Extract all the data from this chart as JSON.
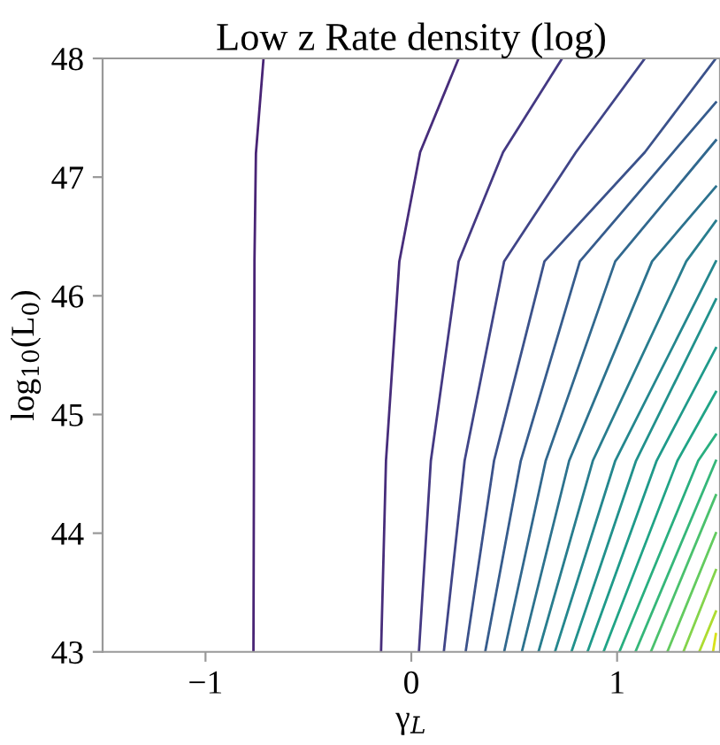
{
  "chart_data": {
    "type": "line",
    "title": "Low z Rate density (log)",
    "xlabel": "γ$_{L}$",
    "ylabel": "log$_{10}$(L$_{0}$)",
    "xlim": [
      -1.5,
      1.5
    ],
    "ylim": [
      43,
      48
    ],
    "xticks": [
      {
        "value": -1,
        "label": "−1"
      },
      0,
      1
    ],
    "yticks": [
      43,
      44,
      45,
      46,
      47,
      48
    ],
    "grid": false,
    "legend": false,
    "marker": "none",
    "line_style": "solid",
    "series": [
      {
        "color": "#482475",
        "x": [
          -0.767,
          -0.762,
          -0.755,
          -0.718
        ],
        "values": [
          43,
          46.3,
          47.2,
          48
        ]
      },
      {
        "color": "#472d7b",
        "x": [
          -0.147,
          -0.123,
          -0.058,
          0.043,
          0.23
        ],
        "values": [
          43,
          44.61,
          46.29,
          47.21,
          48
        ]
      },
      {
        "color": "#443983",
        "x": [
          0.037,
          0.095,
          0.23,
          0.446,
          0.733
        ],
        "values": [
          43,
          44.61,
          46.29,
          47.21,
          48
        ]
      },
      {
        "color": "#404588",
        "x": [
          0.158,
          0.259,
          0.451,
          0.8,
          1.135
        ],
        "values": [
          43,
          44.61,
          46.29,
          47.21,
          48
        ]
      },
      {
        "color": "#3b528b",
        "x": [
          0.264,
          0.402,
          0.647,
          1.135,
          1.48
        ],
        "values": [
          43,
          44.61,
          46.29,
          47.21,
          48
        ]
      },
      {
        "color": "#365c8d",
        "x": [
          0.359,
          0.532,
          0.819,
          1.48
        ],
        "values": [
          43,
          44.61,
          46.29,
          47.63
        ]
      },
      {
        "color": "#31688e",
        "x": [
          0.451,
          0.653,
          0.991,
          1.48
        ],
        "values": [
          43,
          44.61,
          46.29,
          47.31
        ]
      },
      {
        "color": "#2c728e",
        "x": [
          0.537,
          0.767,
          1.17,
          1.48
        ],
        "values": [
          43,
          44.61,
          46.29,
          46.92
        ]
      },
      {
        "color": "#287d8e",
        "x": [
          0.618,
          0.882,
          1.336,
          1.48
        ],
        "values": [
          43,
          44.61,
          46.29,
          46.63
        ]
      },
      {
        "color": "#24878e",
        "x": [
          0.698,
          0.991,
          1.48
        ],
        "values": [
          43,
          44.61,
          46.29
        ]
      },
      {
        "color": "#21918c",
        "x": [
          0.778,
          1.092,
          1.48
        ],
        "values": [
          43,
          44.61,
          45.97
        ]
      },
      {
        "color": "#1f9a8a",
        "x": [
          0.856,
          1.192,
          1.48
        ],
        "values": [
          43,
          44.61,
          45.56
        ]
      },
      {
        "color": "#20a486",
        "x": [
          0.934,
          1.293,
          1.48
        ],
        "values": [
          43,
          44.61,
          45.19
        ]
      },
      {
        "color": "#29af7f",
        "x": [
          1.011,
          1.394,
          1.48
        ],
        "values": [
          43,
          44.61,
          44.83
        ]
      },
      {
        "color": "#35b779",
        "x": [
          1.089,
          1.48
        ],
        "values": [
          43,
          44.61
        ]
      },
      {
        "color": "#4ac16d",
        "x": [
          1.164,
          1.48
        ],
        "values": [
          43,
          44.32
        ]
      },
      {
        "color": "#63cb5f",
        "x": [
          1.244,
          1.48
        ],
        "values": [
          43,
          44.0
        ]
      },
      {
        "color": "#84d44b",
        "x": [
          1.322,
          1.48
        ],
        "values": [
          43,
          43.69
        ]
      },
      {
        "color": "#addc30",
        "x": [
          1.399,
          1.48
        ],
        "values": [
          43,
          43.34
        ]
      },
      {
        "color": "#d8e219",
        "x": [
          1.466,
          1.48
        ],
        "values": [
          43,
          43.15
        ]
      }
    ]
  }
}
